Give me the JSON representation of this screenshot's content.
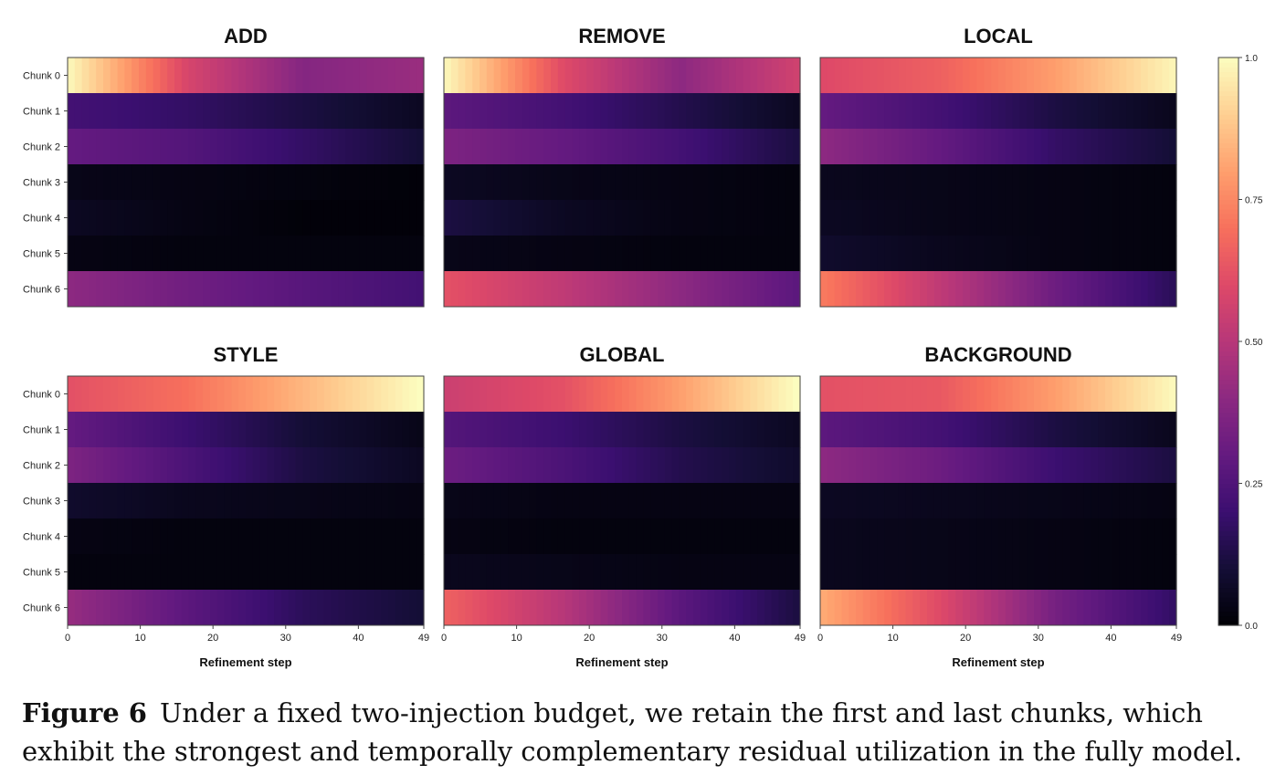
{
  "chart_data": {
    "type": "heatmap",
    "colormap": "magma",
    "row_labels": [
      "Chunk 0",
      "Chunk 1",
      "Chunk 2",
      "Chunk 3",
      "Chunk 4",
      "Chunk 5",
      "Chunk 6"
    ],
    "x": {
      "min": 0,
      "max": 49,
      "ticks": [
        0,
        10,
        20,
        30,
        40,
        49
      ],
      "label": "Refinement step"
    },
    "colorbar": {
      "min": 0.0,
      "max": 1.0,
      "ticks": [
        0.0,
        0.25,
        0.5,
        0.75,
        1.0
      ],
      "tick_labels": [
        "0.0",
        "0.25",
        "0.50",
        "0.75",
        "1.0"
      ]
    },
    "panels": [
      {
        "title": "ADD",
        "rows": [
          [
            0.98,
            0.58,
            0.38,
            0.43
          ],
          [
            0.22,
            0.18,
            0.12,
            0.06
          ],
          [
            0.3,
            0.26,
            0.18,
            0.1
          ],
          [
            0.04,
            0.03,
            0.02,
            0.01
          ],
          [
            0.06,
            0.03,
            0.01,
            0.01
          ],
          [
            0.03,
            0.02,
            0.02,
            0.02
          ],
          [
            0.4,
            0.33,
            0.27,
            0.22
          ]
        ]
      },
      {
        "title": "REMOVE",
        "rows": [
          [
            0.98,
            0.6,
            0.4,
            0.56
          ],
          [
            0.28,
            0.22,
            0.14,
            0.06
          ],
          [
            0.36,
            0.3,
            0.22,
            0.12
          ],
          [
            0.06,
            0.04,
            0.03,
            0.02
          ],
          [
            0.12,
            0.06,
            0.03,
            0.02
          ],
          [
            0.04,
            0.03,
            0.02,
            0.02
          ],
          [
            0.62,
            0.52,
            0.4,
            0.28
          ]
        ]
      },
      {
        "title": "LOCAL",
        "rows": [
          [
            0.6,
            0.66,
            0.8,
            0.98
          ],
          [
            0.3,
            0.22,
            0.12,
            0.05
          ],
          [
            0.4,
            0.3,
            0.18,
            0.1
          ],
          [
            0.05,
            0.04,
            0.03,
            0.02
          ],
          [
            0.06,
            0.04,
            0.03,
            0.02
          ],
          [
            0.08,
            0.05,
            0.03,
            0.02
          ],
          [
            0.72,
            0.52,
            0.32,
            0.16
          ]
        ]
      },
      {
        "title": "STYLE",
        "rows": [
          [
            0.62,
            0.7,
            0.85,
            1.0
          ],
          [
            0.3,
            0.2,
            0.1,
            0.04
          ],
          [
            0.36,
            0.24,
            0.12,
            0.06
          ],
          [
            0.08,
            0.05,
            0.04,
            0.03
          ],
          [
            0.03,
            0.02,
            0.02,
            0.02
          ],
          [
            0.02,
            0.02,
            0.02,
            0.02
          ],
          [
            0.42,
            0.28,
            0.16,
            0.1
          ]
        ]
      },
      {
        "title": "GLOBAL",
        "rows": [
          [
            0.55,
            0.62,
            0.8,
            1.0
          ],
          [
            0.26,
            0.2,
            0.12,
            0.06
          ],
          [
            0.32,
            0.24,
            0.14,
            0.08
          ],
          [
            0.04,
            0.03,
            0.03,
            0.03
          ],
          [
            0.03,
            0.02,
            0.02,
            0.02
          ],
          [
            0.05,
            0.04,
            0.03,
            0.03
          ],
          [
            0.66,
            0.5,
            0.28,
            0.12
          ]
        ]
      },
      {
        "title": "BACKGROUND",
        "rows": [
          [
            0.62,
            0.64,
            0.8,
            0.99
          ],
          [
            0.28,
            0.22,
            0.12,
            0.05
          ],
          [
            0.4,
            0.32,
            0.2,
            0.12
          ],
          [
            0.06,
            0.05,
            0.04,
            0.03
          ],
          [
            0.05,
            0.04,
            0.03,
            0.02
          ],
          [
            0.05,
            0.04,
            0.03,
            0.02
          ],
          [
            0.82,
            0.6,
            0.34,
            0.18
          ]
        ]
      }
    ]
  },
  "caption": {
    "label": "Figure 6",
    "text": "Under a fixed two-injection budget, we retain the first and last chunks, which exhibit the strongest and temporally complementary residual utilization in the fully model."
  }
}
